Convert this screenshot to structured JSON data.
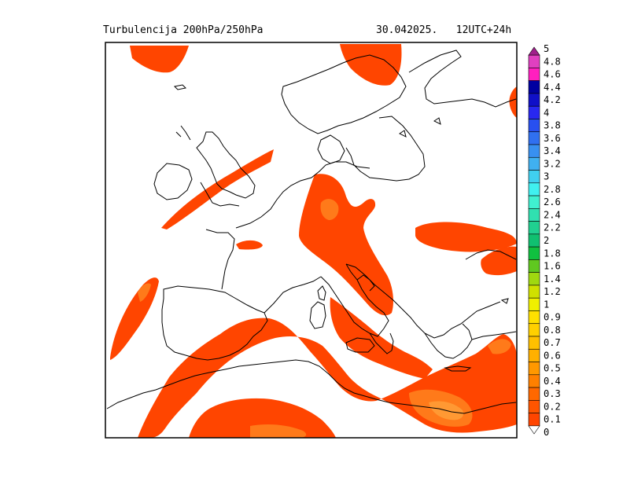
{
  "header": {
    "title": "Turbulencija 200hPa/250hPa",
    "datetime": "30.042025.",
    "run": "12UTC+24h"
  },
  "colors": {
    "fill_main": "#ff4500",
    "fill_light": "#ff7a1a",
    "fill_lighter": "#ff9933",
    "coast": "#000000",
    "frame": "#000000"
  },
  "legend": {
    "entries": [
      {
        "label": "5",
        "color": "#a0208c"
      },
      {
        "label": "4.8",
        "color": "#e040c0"
      },
      {
        "label": "4.6",
        "color": "#ff1fbf"
      },
      {
        "label": "4.4",
        "color": "#0000a0"
      },
      {
        "label": "4.2",
        "color": "#1010c8"
      },
      {
        "label": "4",
        "color": "#2828f0"
      },
      {
        "label": "3.8",
        "color": "#2850f0"
      },
      {
        "label": "3.6",
        "color": "#3070f0"
      },
      {
        "label": "3.4",
        "color": "#3890f0"
      },
      {
        "label": "3.2",
        "color": "#40b0f0"
      },
      {
        "label": "3",
        "color": "#40d0f0"
      },
      {
        "label": "2.8",
        "color": "#40f0f0"
      },
      {
        "label": "2.6",
        "color": "#40f0d0"
      },
      {
        "label": "2.4",
        "color": "#30e0b0"
      },
      {
        "label": "2.2",
        "color": "#20d090"
      },
      {
        "label": "2",
        "color": "#10c070"
      },
      {
        "label": "1.8",
        "color": "#10c040"
      },
      {
        "label": "1.6",
        "color": "#60c820"
      },
      {
        "label": "1.4",
        "color": "#a0d810"
      },
      {
        "label": "1.2",
        "color": "#d0e000"
      },
      {
        "label": "1",
        "color": "#f0f000"
      },
      {
        "label": "0.9",
        "color": "#ffe000"
      },
      {
        "label": "0.8",
        "color": "#ffd000"
      },
      {
        "label": "0.7",
        "color": "#ffc000"
      },
      {
        "label": "0.6",
        "color": "#ffb000"
      },
      {
        "label": "0.5",
        "color": "#ff9800"
      },
      {
        "label": "0.4",
        "color": "#ff8000"
      },
      {
        "label": "0.3",
        "color": "#ff6800"
      },
      {
        "label": "0.2",
        "color": "#ff5500"
      },
      {
        "label": "0.1",
        "color": "#ff4500"
      },
      {
        "label": "0",
        "color": "#ffffff"
      }
    ]
  }
}
